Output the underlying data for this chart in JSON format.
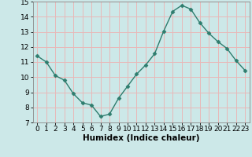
{
  "x": [
    0,
    1,
    2,
    3,
    4,
    5,
    6,
    7,
    8,
    9,
    10,
    11,
    12,
    13,
    14,
    15,
    16,
    17,
    18,
    19,
    20,
    21,
    22,
    23
  ],
  "y": [
    11.4,
    11.0,
    10.1,
    9.8,
    8.9,
    8.3,
    8.15,
    7.4,
    7.55,
    8.6,
    9.4,
    10.2,
    10.8,
    11.55,
    13.05,
    14.35,
    14.75,
    14.5,
    13.6,
    12.9,
    12.35,
    11.9,
    11.1,
    10.45
  ],
  "line_color": "#2e7d6e",
  "marker": "D",
  "marker_size": 2.5,
  "bg_color": "#cce8e8",
  "grid_color": "#e8b8b8",
  "xlabel": "Humidex (Indice chaleur)",
  "ylim": [
    7,
    15
  ],
  "xlim_min": -0.5,
  "xlim_max": 23.5,
  "yticks": [
    7,
    8,
    9,
    10,
    11,
    12,
    13,
    14,
    15
  ],
  "xticks": [
    0,
    1,
    2,
    3,
    4,
    5,
    6,
    7,
    8,
    9,
    10,
    11,
    12,
    13,
    14,
    15,
    16,
    17,
    18,
    19,
    20,
    21,
    22,
    23
  ],
  "xlabel_fontsize": 7.5,
  "tick_fontsize": 6.5
}
